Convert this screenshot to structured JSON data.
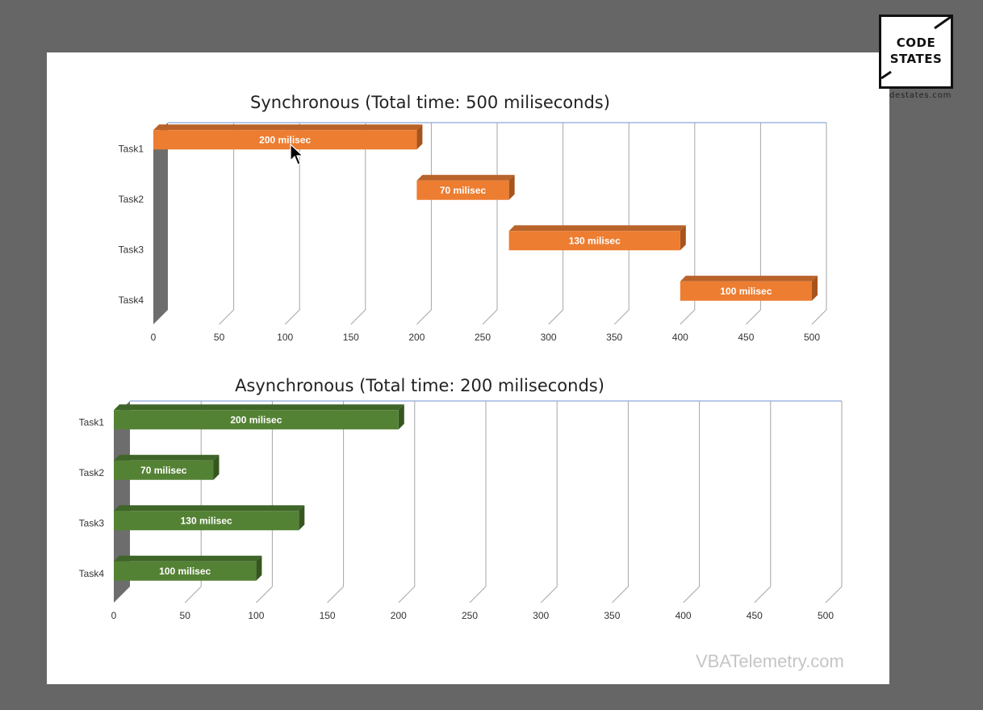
{
  "logo": {
    "line1": "CODE",
    "line2": "STATES",
    "url": "destates.com"
  },
  "watermark": "VBATelemetry.com",
  "colors": {
    "sync_bar": "#ED7D31",
    "sync_bar_top": "#B9632A",
    "sync_bar_side": "#A8531C",
    "async_bar": "#548235",
    "async_bar_top": "#3F6528",
    "async_bar_side": "#36561F",
    "grid": "#A6A6A6",
    "frame_top": "#8EA9DB"
  },
  "chart_data": [
    {
      "type": "bar",
      "orientation": "horizontal-stacked-gantt",
      "title": "Synchronous (Total time: 500 miliseconds)",
      "categories": [
        "Task1",
        "Task2",
        "Task3",
        "Task4"
      ],
      "starts": [
        0,
        200,
        270,
        400
      ],
      "values": [
        200,
        70,
        130,
        100
      ],
      "data_labels": [
        "200 milisec",
        "70 milisec",
        "130 milisec",
        "100 milisec"
      ],
      "xlim": [
        0,
        500
      ],
      "xticks": [
        0,
        50,
        100,
        150,
        200,
        250,
        300,
        350,
        400,
        450,
        500
      ],
      "grid": true,
      "legend": "none"
    },
    {
      "type": "bar",
      "orientation": "horizontal",
      "title": "Asynchronous (Total time: 200 miliseconds)",
      "categories": [
        "Task1",
        "Task2",
        "Task3",
        "Task4"
      ],
      "starts": [
        0,
        0,
        0,
        0
      ],
      "values": [
        200,
        70,
        130,
        100
      ],
      "data_labels": [
        "200 milisec",
        "70 milisec",
        "130 milisec",
        "100 milisec"
      ],
      "xlim": [
        0,
        500
      ],
      "xticks": [
        0,
        50,
        100,
        150,
        200,
        250,
        300,
        350,
        400,
        450,
        500
      ],
      "grid": true,
      "legend": "none"
    }
  ]
}
